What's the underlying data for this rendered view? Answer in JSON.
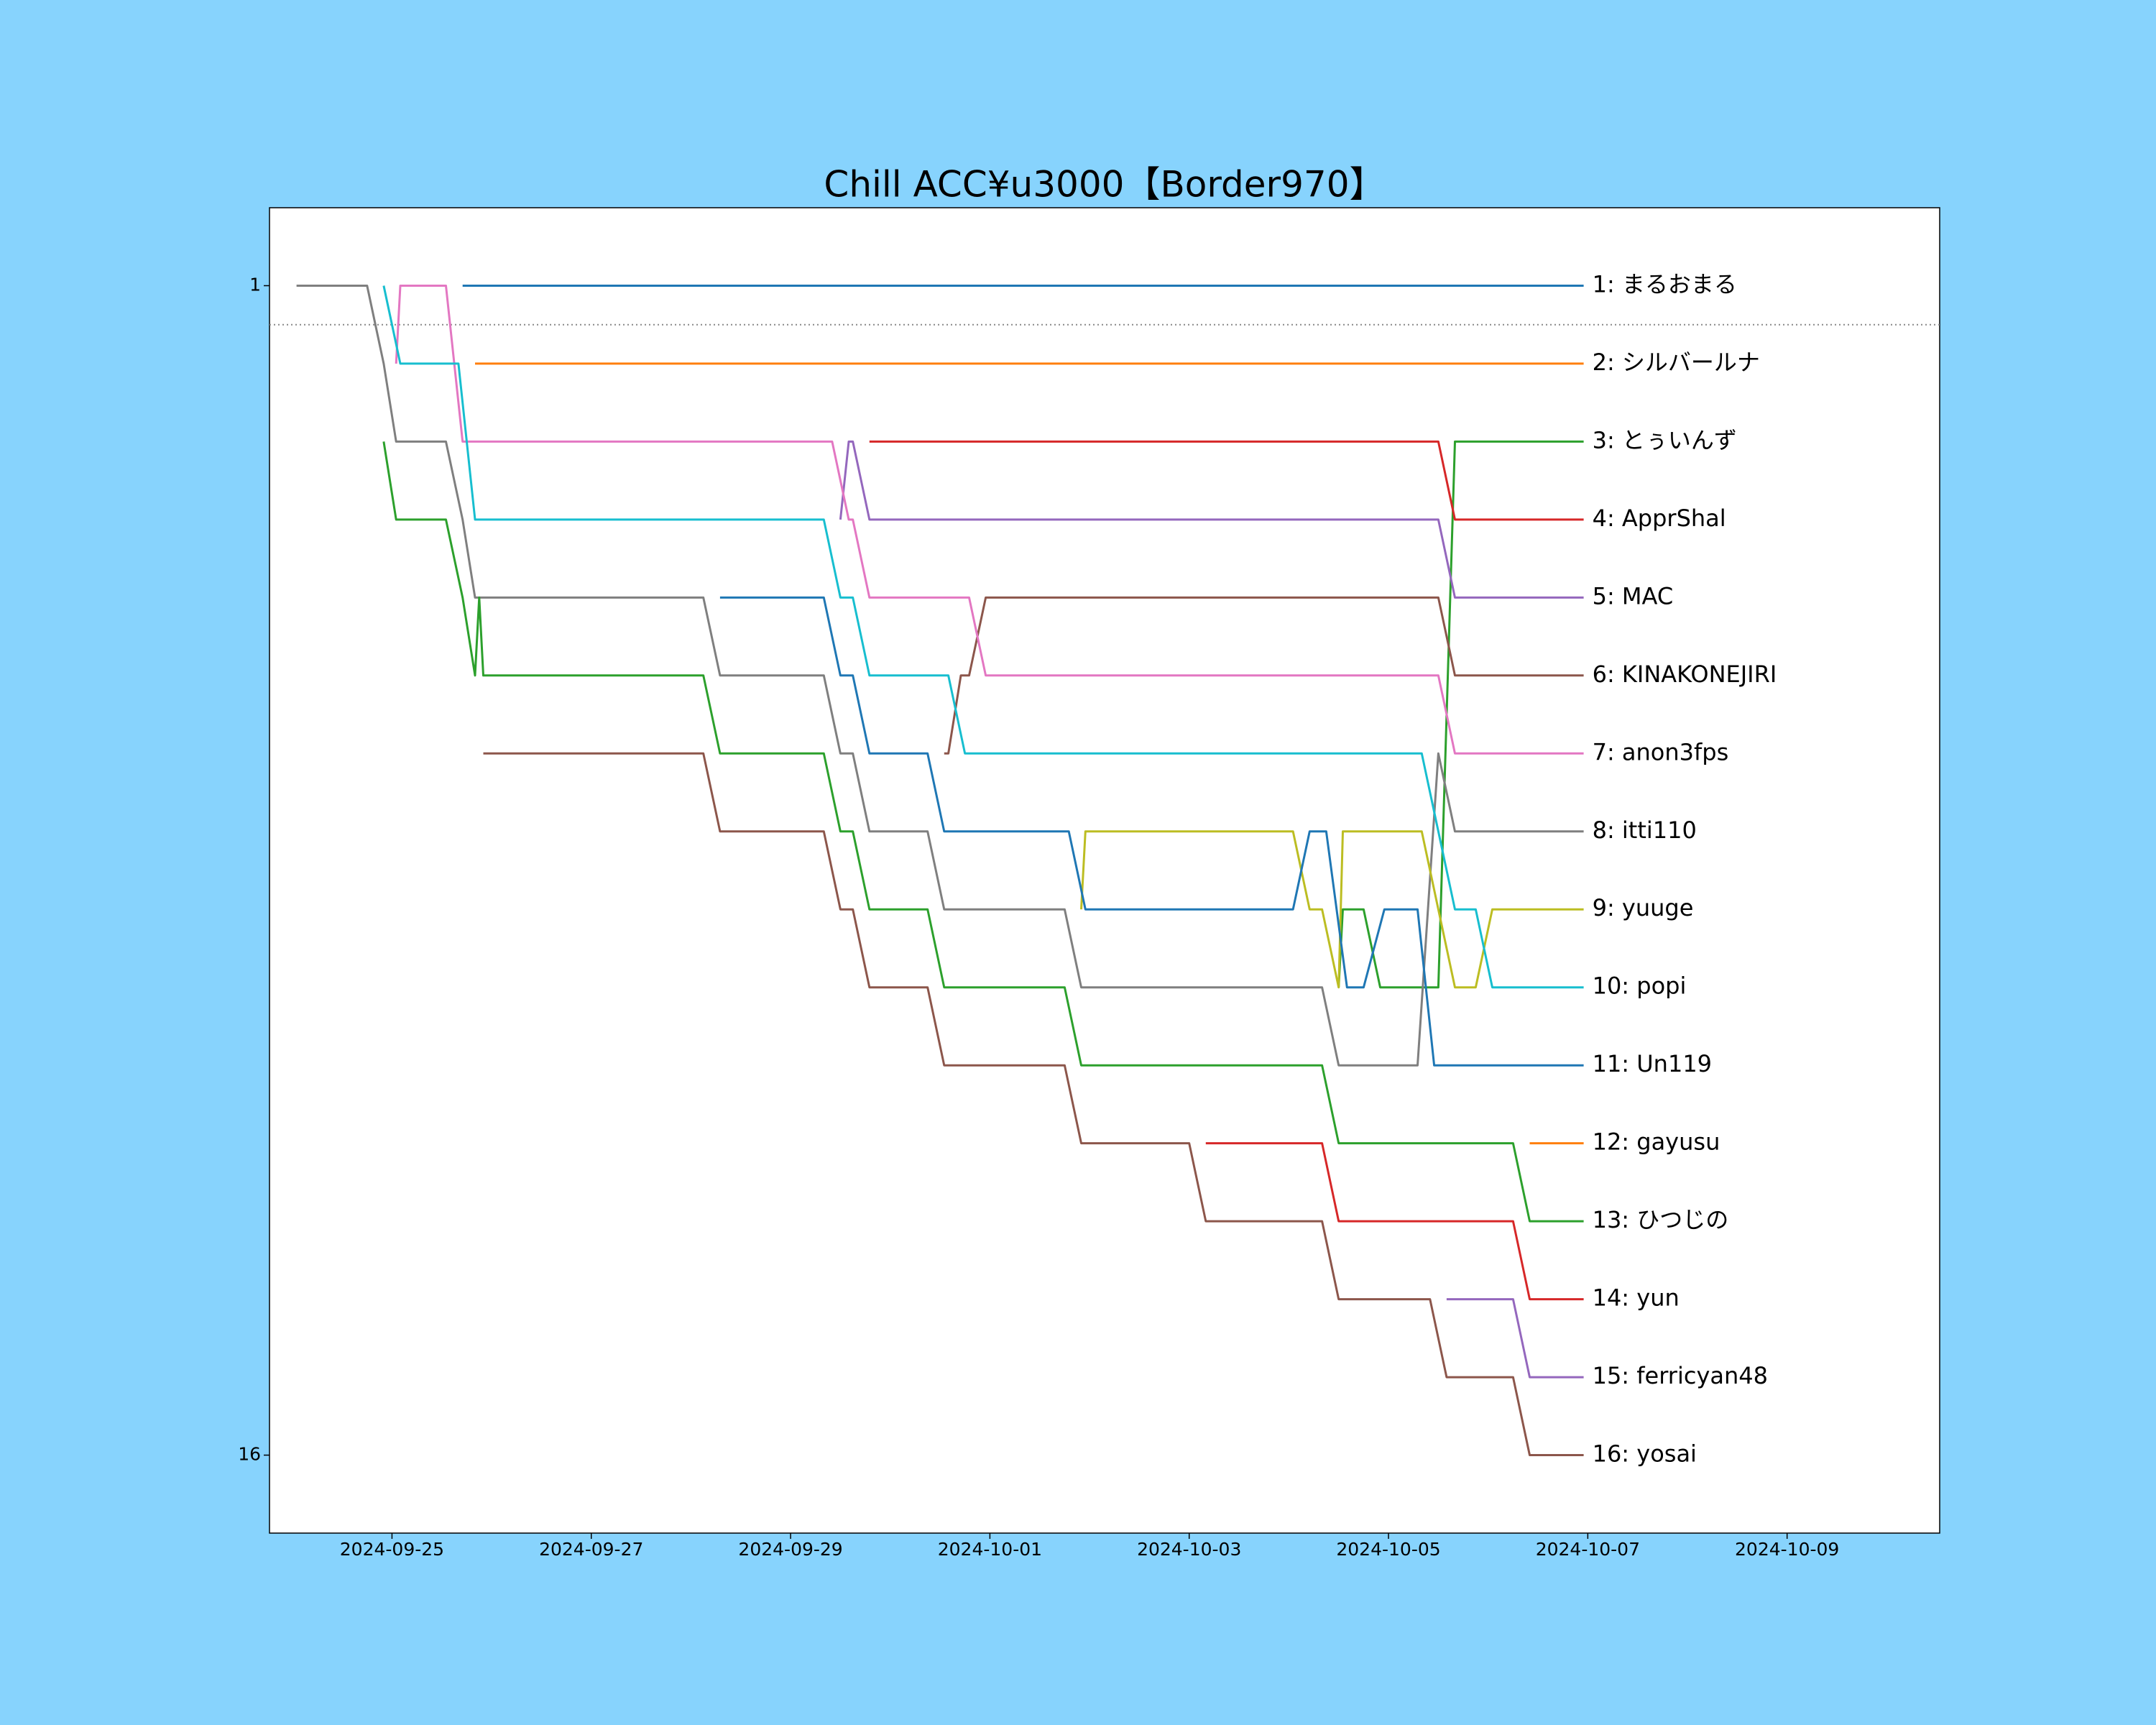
{
  "chart_data": {
    "type": "line",
    "title": "Chill ACC¥u3000【Border970】",
    "xlim": [
      "2024-09-23T18:30",
      "2024-10-10T12:45"
    ],
    "xticks": [
      "2024-09-25",
      "2024-09-27",
      "2024-09-29",
      "2024-10-01",
      "2024-10-03",
      "2024-10-05",
      "2024-10-07",
      "2024-10-09"
    ],
    "ylim": [
      0,
      17
    ],
    "y_inverted": true,
    "yticks": [
      1,
      16
    ],
    "border_line": 1.5,
    "series": [
      {
        "name": "1: まるおまる",
        "color": "#1f77b4",
        "x": [
          "2024-09-25T17:00",
          "2024-10-06T23:00"
        ],
        "values": [
          1,
          1
        ]
      },
      {
        "name": "2: シルバールナ",
        "color": "#ff7f0e",
        "x": [
          "2024-09-25T20:00",
          "2024-10-06T23:00"
        ],
        "values": [
          2,
          2
        ]
      },
      {
        "name": "3: とぅいんず",
        "color": "#2ca02c",
        "x": [
          "2024-10-04T12:00",
          "2024-10-04T13:00",
          "2024-10-04T18:00",
          "2024-10-04T22:00",
          "2024-10-05T12:00",
          "2024-10-05T16:00",
          "2024-10-06T23:00"
        ],
        "values": [
          10,
          9,
          9,
          10,
          10,
          3,
          3
        ]
      },
      {
        "name": "4: ApprShal",
        "color": "#d62728",
        "x": [
          "2024-09-29T19:00",
          "2024-10-05T12:00",
          "2024-10-05T16:00",
          "2024-10-06T23:00"
        ],
        "values": [
          3,
          3,
          4,
          4
        ]
      },
      {
        "name": "5: MAC",
        "color": "#9467bd",
        "x": [
          "2024-09-29T12:00",
          "2024-09-29T14:00",
          "2024-09-29T15:00",
          "2024-09-29T19:00",
          "2024-10-05T12:00",
          "2024-10-05T16:00",
          "2024-10-06T23:00"
        ],
        "values": [
          4,
          3,
          3,
          4,
          4,
          5,
          5
        ]
      },
      {
        "name": "6: KINAKONEJIRI",
        "color": "#8c564b",
        "x": [
          "2024-09-30T13:00",
          "2024-09-30T14:00",
          "2024-09-30T17:00",
          "2024-09-30T19:00",
          "2024-09-30T23:00",
          "2024-10-05T12:00",
          "2024-10-05T16:00",
          "2024-10-06T23:00"
        ],
        "values": [
          7,
          7,
          6,
          6,
          5,
          5,
          6,
          6
        ]
      },
      {
        "name": "7: anon3fps",
        "color": "#e377c2",
        "x": [
          "2024-09-25T01:00",
          "2024-09-25T02:00",
          "2024-09-25T13:00",
          "2024-09-25T17:00",
          "2024-09-29T10:00",
          "2024-09-29T14:00",
          "2024-09-29T15:00",
          "2024-09-29T19:00",
          "2024-09-30T19:00",
          "2024-09-30T23:00",
          "2024-10-05T12:00",
          "2024-10-05T16:00",
          "2024-10-06T23:00"
        ],
        "values": [
          2,
          1,
          1,
          3,
          3,
          4,
          4,
          5,
          5,
          6,
          6,
          7,
          7
        ]
      },
      {
        "name": "8: itti110",
        "color": "#7f7f7f",
        "x": [
          "2024-09-24T01:00",
          "2024-09-24T18:00",
          "2024-09-24T22:00",
          "2024-09-25T01:00",
          "2024-09-25T13:00",
          "2024-09-25T17:00",
          "2024-09-25T20:00",
          "2024-09-28T03:00",
          "2024-09-28T07:00",
          "2024-09-29T08:00",
          "2024-09-29T12:00",
          "2024-09-29T15:00",
          "2024-09-29T19:00",
          "2024-09-30T09:00",
          "2024-09-30T13:00",
          "2024-10-01T18:00",
          "2024-10-01T22:00",
          "2024-10-04T08:00",
          "2024-10-04T12:00",
          "2024-10-05T07:00",
          "2024-10-05T12:00",
          "2024-10-05T16:00",
          "2024-10-06T23:00"
        ],
        "values": [
          1,
          1,
          2,
          3,
          3,
          4,
          5,
          5,
          6,
          6,
          7,
          7,
          8,
          8,
          9,
          9,
          10,
          10,
          11,
          11,
          7,
          8,
          8
        ]
      },
      {
        "name": "9: yuuge",
        "color": "#bcbd22",
        "x": [
          "2024-10-01T22:00",
          "2024-10-01T23:00",
          "2024-10-04T01:00",
          "2024-10-04T05:00",
          "2024-10-04T08:00",
          "2024-10-04T12:00",
          "2024-10-04T13:00",
          "2024-10-05T08:00",
          "2024-10-05T16:00",
          "2024-10-05T21:00",
          "2024-10-06T01:00",
          "2024-10-06T23:00"
        ],
        "values": [
          9,
          8,
          8,
          9,
          9,
          10,
          8,
          8,
          10,
          10,
          9,
          9
        ]
      },
      {
        "name": "10: popi",
        "color": "#17becf",
        "x": [
          "2024-09-24T22:00",
          "2024-09-25T02:00",
          "2024-09-25T16:00",
          "2024-09-25T20:00",
          "2024-09-29T08:00",
          "2024-09-29T12:00",
          "2024-09-29T15:00",
          "2024-09-29T19:00",
          "2024-09-30T14:00",
          "2024-09-30T18:00",
          "2024-10-05T08:00",
          "2024-10-05T16:00",
          "2024-10-05T21:00",
          "2024-10-06T01:00",
          "2024-10-06T23:00"
        ],
        "values": [
          1,
          2,
          2,
          4,
          4,
          5,
          5,
          6,
          6,
          7,
          7,
          9,
          9,
          10,
          10
        ]
      },
      {
        "name": "11: Un119",
        "color": "#1f77b4",
        "x": [
          "2024-09-28T07:00",
          "2024-09-29T08:00",
          "2024-09-29T12:00",
          "2024-09-29T15:00",
          "2024-09-29T19:00",
          "2024-09-30T09:00",
          "2024-09-30T13:00",
          "2024-10-01T19:00",
          "2024-10-01T23:00",
          "2024-10-04T01:00",
          "2024-10-04T05:00",
          "2024-10-04T09:00",
          "2024-10-04T14:00",
          "2024-10-04T18:00",
          "2024-10-04T23:00",
          "2024-10-05T07:00",
          "2024-10-05T11:00",
          "2024-10-06T23:00"
        ],
        "values": [
          5,
          5,
          6,
          6,
          7,
          7,
          8,
          8,
          9,
          9,
          8,
          8,
          10,
          10,
          9,
          9,
          11,
          11
        ]
      },
      {
        "name": "12: gayusu",
        "color": "#ff7f0e",
        "x": [
          "2024-10-06T10:00",
          "2024-10-06T23:00"
        ],
        "values": [
          12,
          12
        ]
      },
      {
        "name": "13: ひつじの",
        "color": "#2ca02c",
        "x": [
          "2024-09-24T22:00",
          "2024-09-25T01:00",
          "2024-09-25T13:00",
          "2024-09-25T17:00",
          "2024-09-25T20:00",
          "2024-09-25T21:00",
          "2024-09-25T22:00",
          "2024-09-28T03:00",
          "2024-09-28T07:00",
          "2024-09-29T08:00",
          "2024-09-29T12:00",
          "2024-09-29T15:00",
          "2024-09-29T19:00",
          "2024-09-30T09:00",
          "2024-09-30T13:00",
          "2024-10-01T18:00",
          "2024-10-01T22:00",
          "2024-10-04T08:00",
          "2024-10-04T12:00",
          "2024-10-06T06:00",
          "2024-10-06T10:00",
          "2024-10-06T23:00"
        ],
        "values": [
          3,
          4,
          4,
          5,
          6,
          5,
          6,
          6,
          7,
          7,
          8,
          8,
          9,
          9,
          10,
          10,
          11,
          11,
          12,
          12,
          13,
          13
        ]
      },
      {
        "name": "14: yun",
        "color": "#d62728",
        "x": [
          "2024-10-03T04:00",
          "2024-10-04T08:00",
          "2024-10-04T12:00",
          "2024-10-06T06:00",
          "2024-10-06T10:00",
          "2024-10-06T23:00"
        ],
        "values": [
          12,
          12,
          13,
          13,
          14,
          14
        ]
      },
      {
        "name": "15: ferricyan48",
        "color": "#9467bd",
        "x": [
          "2024-10-05T14:00",
          "2024-10-06T06:00",
          "2024-10-06T10:00",
          "2024-10-06T23:00"
        ],
        "values": [
          14,
          14,
          15,
          15
        ]
      },
      {
        "name": "16: yosai",
        "color": "#8c564b",
        "x": [
          "2024-09-25T22:00",
          "2024-09-28T03:00",
          "2024-09-28T07:00",
          "2024-09-29T08:00",
          "2024-09-29T12:00",
          "2024-09-29T15:00",
          "2024-09-29T19:00",
          "2024-09-30T09:00",
          "2024-09-30T13:00",
          "2024-10-01T18:00",
          "2024-10-01T22:00",
          "2024-10-03T00:00",
          "2024-10-03T04:00",
          "2024-10-04T08:00",
          "2024-10-04T12:00",
          "2024-10-05T10:00",
          "2024-10-05T14:00",
          "2024-10-06T06:00",
          "2024-10-06T10:00",
          "2024-10-06T23:00"
        ],
        "values": [
          7,
          7,
          8,
          8,
          9,
          9,
          10,
          10,
          11,
          11,
          12,
          12,
          13,
          13,
          14,
          14,
          15,
          15,
          16,
          16
        ]
      }
    ]
  }
}
